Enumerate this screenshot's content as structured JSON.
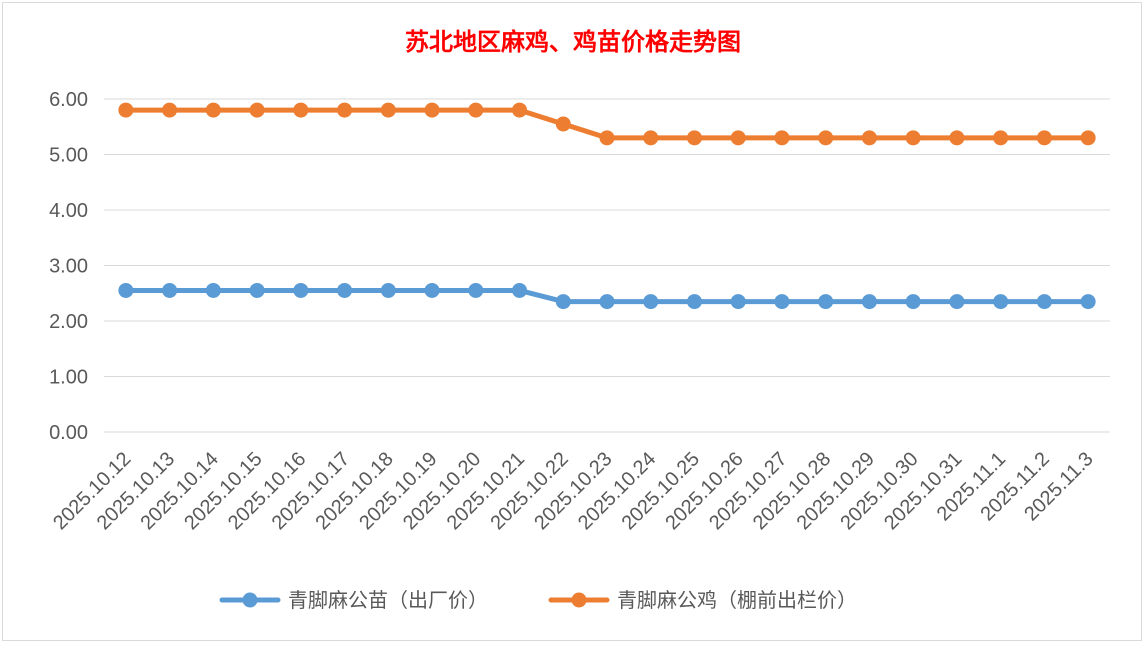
{
  "chart_data": {
    "type": "line",
    "title": "苏北地区麻鸡、鸡苗价格走势图",
    "xlabel": "",
    "ylabel": "",
    "ylim": [
      0,
      6
    ],
    "yticks": [
      "0.00",
      "1.00",
      "2.00",
      "3.00",
      "4.00",
      "5.00",
      "6.00"
    ],
    "grid": true,
    "legend_position": "bottom",
    "categories": [
      "2025.10.12",
      "2025.10.13",
      "2025.10.14",
      "2025.10.15",
      "2025.10.16",
      "2025.10.17",
      "2025.10.18",
      "2025.10.19",
      "2025.10.20",
      "2025.10.21",
      "2025.10.22",
      "2025.10.23",
      "2025.10.24",
      "2025.10.25",
      "2025.10.26",
      "2025.10.27",
      "2025.10.28",
      "2025.10.29",
      "2025.10.30",
      "2025.10.31",
      "2025.11.1",
      "2025.11.2",
      "2025.11.3"
    ],
    "series": [
      {
        "name": "青脚麻公苗（出厂价）",
        "color": "#5b9bd5",
        "values": [
          2.55,
          2.55,
          2.55,
          2.55,
          2.55,
          2.55,
          2.55,
          2.55,
          2.55,
          2.55,
          2.35,
          2.35,
          2.35,
          2.35,
          2.35,
          2.35,
          2.35,
          2.35,
          2.35,
          2.35,
          2.35,
          2.35,
          2.35
        ]
      },
      {
        "name": "青脚麻公鸡（棚前出栏价）",
        "color": "#ed7d31",
        "values": [
          5.8,
          5.8,
          5.8,
          5.8,
          5.8,
          5.8,
          5.8,
          5.8,
          5.8,
          5.8,
          5.55,
          5.3,
          5.3,
          5.3,
          5.3,
          5.3,
          5.3,
          5.3,
          5.3,
          5.3,
          5.3,
          5.3,
          5.3
        ]
      }
    ]
  }
}
